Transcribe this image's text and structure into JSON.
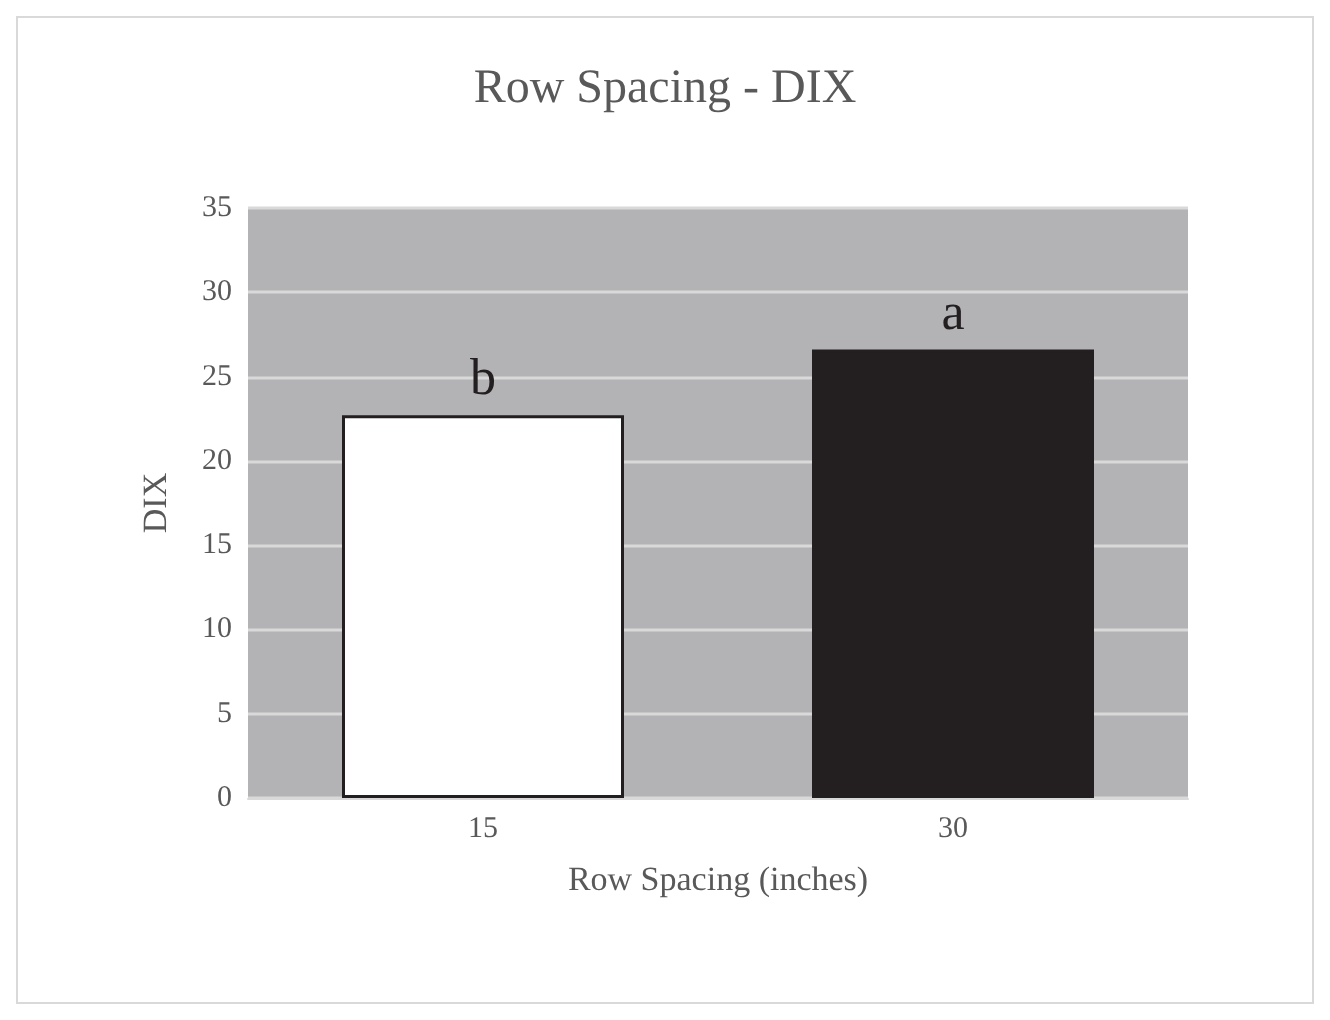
{
  "chart_data": {
    "type": "bar",
    "title": "Row Spacing - DIX",
    "xlabel": "Row Spacing (inches)",
    "ylabel": "DIX",
    "categories": [
      "15",
      "30"
    ],
    "values": [
      22.7,
      26.6
    ],
    "colors": [
      "#ffffff",
      "#231f20"
    ],
    "ylim": [
      0,
      35
    ],
    "yticks": [
      0,
      5,
      10,
      15,
      20,
      25,
      30,
      35
    ],
    "grid": "y",
    "annotations": [
      {
        "text": "b",
        "x": "15",
        "y": 22.7
      },
      {
        "text": "a",
        "x": "30",
        "y": 26.6
      }
    ]
  }
}
